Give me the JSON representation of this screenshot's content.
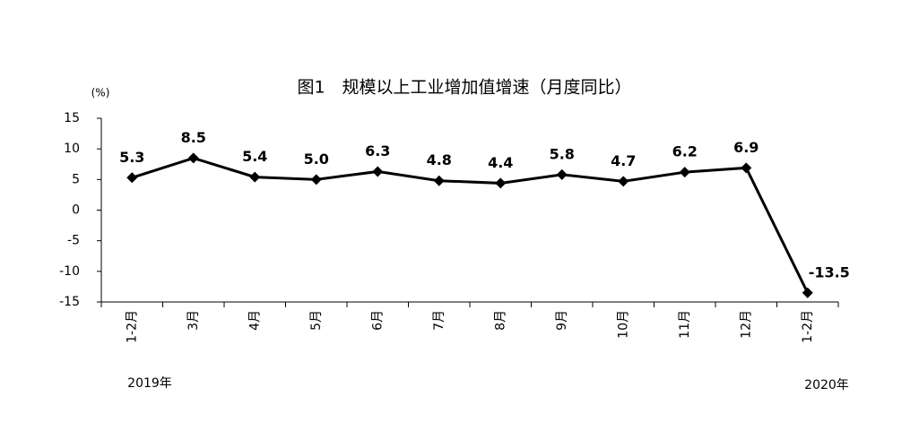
{
  "chart_data": {
    "type": "line",
    "title": "图1　规模以上工业增加值增速（月度同比）",
    "y_unit": "(%)",
    "categories": [
      "1-2月",
      "3月",
      "4月",
      "5月",
      "6月",
      "7月",
      "8月",
      "9月",
      "10月",
      "11月",
      "12月",
      "1-2月"
    ],
    "values": [
      5.3,
      8.5,
      5.4,
      5.0,
      6.3,
      4.8,
      4.4,
      5.8,
      4.7,
      6.2,
      6.9,
      -13.5
    ],
    "value_labels": [
      "5.3",
      "8.5",
      "5.4",
      "5.0",
      "6.3",
      "4.8",
      "4.4",
      "5.8",
      "4.7",
      "6.2",
      "6.9",
      "-13.5"
    ],
    "color": "#000000",
    "ylim": [
      -15,
      15
    ],
    "yticks": [
      -15,
      -10,
      -5,
      0,
      5,
      10,
      15
    ],
    "annotations": [
      "2019年",
      "2020年"
    ]
  }
}
